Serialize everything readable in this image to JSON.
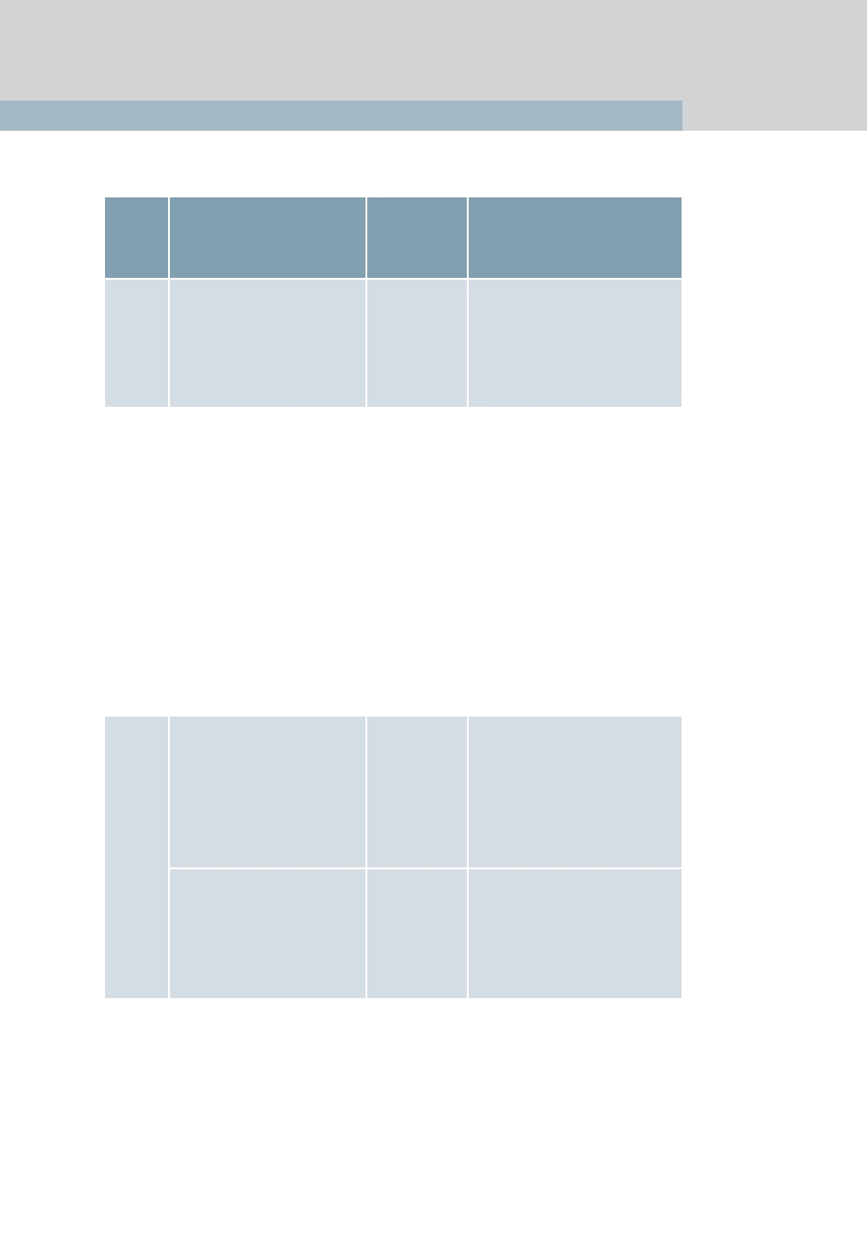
{
  "colors": {
    "header_background": "#d2d3d5",
    "accent_bar": "#a4b7c4",
    "table_header": "#809fb0",
    "table_cell": "#d5dde4",
    "page_background": "#ffffff"
  },
  "tables": [
    {
      "header_row": [
        "",
        "",
        "",
        ""
      ],
      "rows": [
        [
          "",
          "",
          "",
          ""
        ]
      ]
    },
    {
      "header_row": [],
      "rows": [
        [
          "",
          "",
          "",
          ""
        ],
        [
          "",
          "",
          ""
        ]
      ]
    }
  ]
}
